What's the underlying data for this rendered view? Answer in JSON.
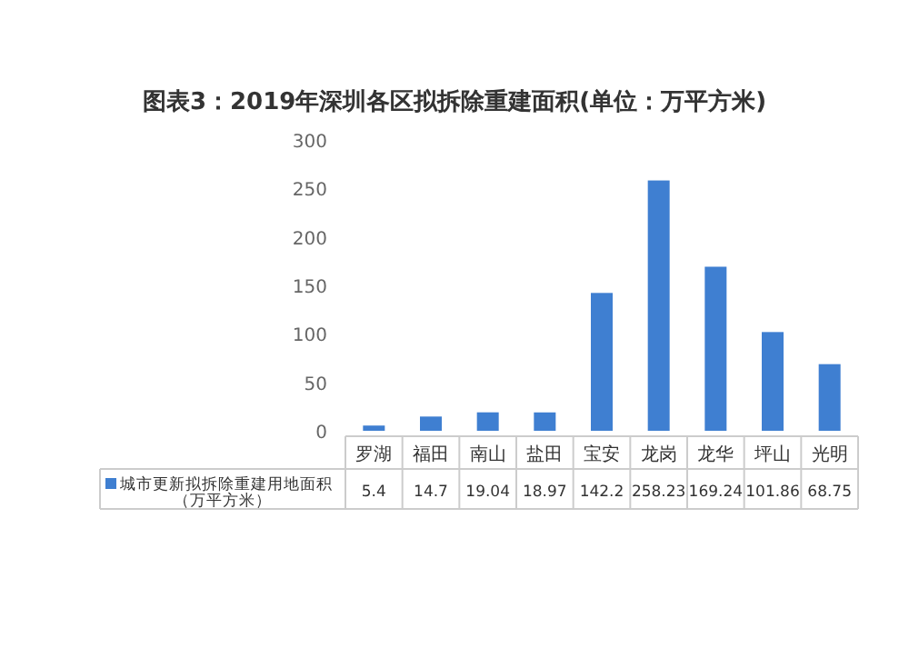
{
  "chart_data": {
    "type": "bar",
    "title": "图表3：2019年深圳各区拟拆除重建面积(单位：万平方米)",
    "categories": [
      "罗湖",
      "福田",
      "南山",
      "盐田",
      "宝安",
      "龙岗",
      "龙华",
      "坪山",
      "光明"
    ],
    "series": [
      {
        "name": "城市更新拟拆除重建用地面积（万平方米）",
        "color": "#3f7fd1",
        "values": [
          5.4,
          14.7,
          19.04,
          18.97,
          142.2,
          258.23,
          169.24,
          101.86,
          68.75
        ]
      }
    ],
    "ylim": [
      0,
      300
    ],
    "yticks": [
      0,
      50,
      100,
      150,
      200,
      250,
      300
    ],
    "data_labels": true,
    "legend": "bottom left"
  }
}
